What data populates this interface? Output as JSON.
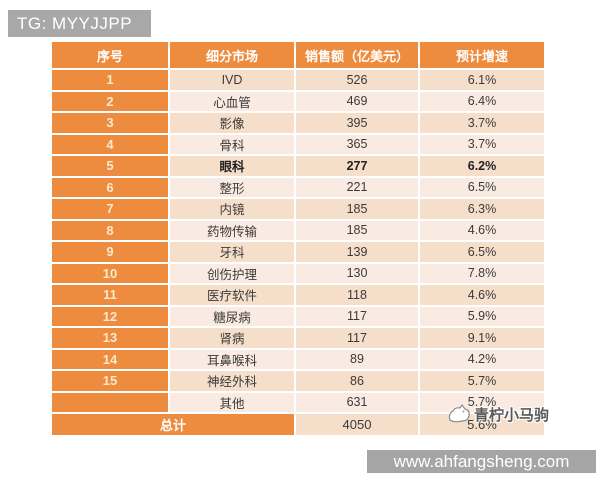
{
  "badge": {
    "text": "TG: MYYJJPP"
  },
  "watermark": {
    "text": "青柠小马驹"
  },
  "footer": {
    "url": "www.ahfangsheng.com"
  },
  "colors": {
    "orange": "#ed8c3e",
    "row_odd": "#f6dfca",
    "row_even": "#faebe2",
    "badge_gray": "#a8a8a8",
    "footer_gray": "#a5a5a5"
  },
  "table": {
    "headers": [
      "序号",
      "细分市场",
      "销售额（亿美元）",
      "预计增速"
    ],
    "rows": [
      {
        "no": "1",
        "segment": "IVD",
        "sales": "526",
        "growth": "6.1%",
        "bold": false
      },
      {
        "no": "2",
        "segment": "心血管",
        "sales": "469",
        "growth": "6.4%",
        "bold": false
      },
      {
        "no": "3",
        "segment": "影像",
        "sales": "395",
        "growth": "3.7%",
        "bold": false
      },
      {
        "no": "4",
        "segment": "骨科",
        "sales": "365",
        "growth": "3.7%",
        "bold": false
      },
      {
        "no": "5",
        "segment": "眼科",
        "sales": "277",
        "growth": "6.2%",
        "bold": true
      },
      {
        "no": "6",
        "segment": "整形",
        "sales": "221",
        "growth": "6.5%",
        "bold": false
      },
      {
        "no": "7",
        "segment": "内镜",
        "sales": "185",
        "growth": "6.3%",
        "bold": false
      },
      {
        "no": "8",
        "segment": "药物传输",
        "sales": "185",
        "growth": "4.6%",
        "bold": false
      },
      {
        "no": "9",
        "segment": "牙科",
        "sales": "139",
        "growth": "6.5%",
        "bold": false
      },
      {
        "no": "10",
        "segment": "创伤护理",
        "sales": "130",
        "growth": "7.8%",
        "bold": false
      },
      {
        "no": "11",
        "segment": "医疗软件",
        "sales": "118",
        "growth": "4.6%",
        "bold": false
      },
      {
        "no": "12",
        "segment": "糖尿病",
        "sales": "117",
        "growth": "5.9%",
        "bold": false
      },
      {
        "no": "13",
        "segment": "肾病",
        "sales": "117",
        "growth": "9.1%",
        "bold": false
      },
      {
        "no": "14",
        "segment": "耳鼻喉科",
        "sales": "89",
        "growth": "4.2%",
        "bold": false
      },
      {
        "no": "15",
        "segment": "神经外科",
        "sales": "86",
        "growth": "5.7%",
        "bold": false
      },
      {
        "no": "",
        "segment": "其他",
        "sales": "631",
        "growth": "5.7%",
        "bold": false
      }
    ],
    "total": {
      "label": "总计",
      "sales": "4050",
      "growth": "5.6%"
    }
  },
  "chart_data": {
    "type": "table",
    "columns": [
      "序号",
      "细分市场",
      "销售额（亿美元）",
      "预计增速"
    ],
    "rows": [
      [
        1,
        "IVD",
        526,
        "6.1%"
      ],
      [
        2,
        "心血管",
        469,
        "6.4%"
      ],
      [
        3,
        "影像",
        395,
        "3.7%"
      ],
      [
        4,
        "骨科",
        365,
        "3.7%"
      ],
      [
        5,
        "眼科",
        277,
        "6.2%"
      ],
      [
        6,
        "整形",
        221,
        "6.5%"
      ],
      [
        7,
        "内镜",
        185,
        "6.3%"
      ],
      [
        8,
        "药物传输",
        185,
        "4.6%"
      ],
      [
        9,
        "牙科",
        139,
        "6.5%"
      ],
      [
        10,
        "创伤护理",
        130,
        "7.8%"
      ],
      [
        11,
        "医疗软件",
        118,
        "4.6%"
      ],
      [
        12,
        "糖尿病",
        117,
        "5.9%"
      ],
      [
        13,
        "肾病",
        117,
        "9.1%"
      ],
      [
        14,
        "耳鼻喉科",
        89,
        "4.2%"
      ],
      [
        15,
        "神经外科",
        86,
        "5.7%"
      ],
      [
        "",
        "其他",
        631,
        "5.7%"
      ]
    ],
    "total_row": [
      "总计",
      4050,
      "5.6%"
    ]
  }
}
